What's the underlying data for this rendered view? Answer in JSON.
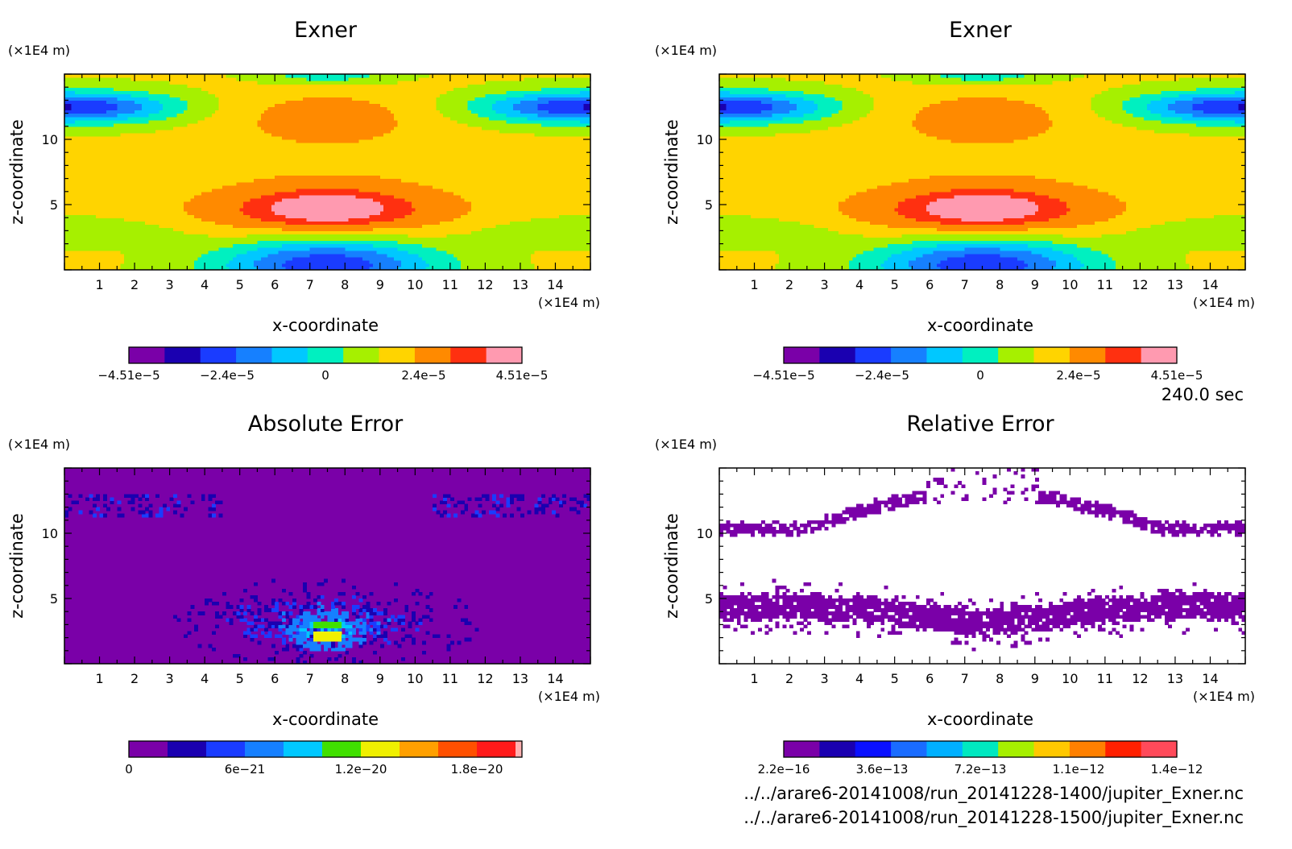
{
  "figure": {
    "time_label": "240.0 sec",
    "file_lines": [
      "../../arare6-20141008/run_20141228-1400/jupiter_Exner.nc",
      "../../arare6-20141008/run_20141228-1500/jupiter_Exner.nc"
    ]
  },
  "chart_data": [
    {
      "type": "heatmap",
      "title": "Exner",
      "xlabel": "x-coordinate",
      "ylabel": "z-coordinate",
      "x_unit": "(×1E4 m)",
      "y_unit": "(×1E4 m)",
      "xlim": [
        0,
        15
      ],
      "ylim": [
        0,
        15
      ],
      "xticks": [
        "1",
        "2",
        "3",
        "4",
        "5",
        "6",
        "7",
        "8",
        "9",
        "10",
        "11",
        "12",
        "13",
        "14"
      ],
      "yticks": [
        "5",
        "10"
      ],
      "colorbar": {
        "levels": 11,
        "min": -4.51e-05,
        "max": 4.51e-05,
        "labels": [
          "−4.51e−5",
          "−2.4e−5",
          "0",
          "2.4e−5",
          "4.51e−5"
        ],
        "colors": [
          "#7a00a8",
          "#1a00b0",
          "#1a3cff",
          "#1680ff",
          "#00c8ff",
          "#00f0c0",
          "#a6f000",
          "#ffd400",
          "#ff8a00",
          "#ff3010",
          "#ff9ab0"
        ]
      },
      "field": "exner"
    },
    {
      "type": "heatmap",
      "title": "Exner",
      "xlabel": "x-coordinate",
      "ylabel": "z-coordinate",
      "x_unit": "(×1E4 m)",
      "y_unit": "(×1E4 m)",
      "xlim": [
        0,
        15
      ],
      "ylim": [
        0,
        15
      ],
      "xticks": [
        "1",
        "2",
        "3",
        "4",
        "5",
        "6",
        "7",
        "8",
        "9",
        "10",
        "11",
        "12",
        "13",
        "14"
      ],
      "yticks": [
        "5",
        "10"
      ],
      "colorbar": {
        "levels": 11,
        "min": -4.51e-05,
        "max": 4.51e-05,
        "labels": [
          "−4.51e−5",
          "−2.4e−5",
          "0",
          "2.4e−5",
          "4.51e−5"
        ],
        "colors": [
          "#7a00a8",
          "#1a00b0",
          "#1a3cff",
          "#1680ff",
          "#00c8ff",
          "#00f0c0",
          "#a6f000",
          "#ffd400",
          "#ff8a00",
          "#ff3010",
          "#ff9ab0"
        ]
      },
      "field": "exner"
    },
    {
      "type": "heatmap",
      "title": "Absolute Error",
      "xlabel": "x-coordinate",
      "ylabel": "z-coordinate",
      "x_unit": "(×1E4 m)",
      "y_unit": "(×1E4 m)",
      "xlim": [
        0,
        15
      ],
      "ylim": [
        0,
        15
      ],
      "xticks": [
        "1",
        "2",
        "3",
        "4",
        "5",
        "6",
        "7",
        "8",
        "9",
        "10",
        "11",
        "12",
        "13",
        "14"
      ],
      "yticks": [
        "5",
        "10"
      ],
      "colorbar": {
        "levels": 11,
        "min": 0,
        "max": 2.1e-20,
        "labels": [
          "0",
          "6e−21",
          "1.2e−20",
          "1.8e−20"
        ],
        "colors": [
          "#7a00a8",
          "#1a00b0",
          "#1a3cff",
          "#1680ff",
          "#00c8ff",
          "#40e000",
          "#f0f000",
          "#ffa000",
          "#ff5000",
          "#ff1a1a",
          "#ffb0b0"
        ]
      },
      "field": "abs_error"
    },
    {
      "type": "heatmap",
      "title": "Relative Error",
      "xlabel": "x-coordinate",
      "ylabel": "z-coordinate",
      "x_unit": "(×1E4 m)",
      "y_unit": "(×1E4 m)",
      "xlim": [
        0,
        15
      ],
      "ylim": [
        0,
        15
      ],
      "xticks": [
        "1",
        "2",
        "3",
        "4",
        "5",
        "6",
        "7",
        "8",
        "9",
        "10",
        "11",
        "12",
        "13",
        "14"
      ],
      "yticks": [
        "5",
        "10"
      ],
      "colorbar": {
        "levels": 11,
        "min": 2.2e-16,
        "max": 1.4e-12,
        "labels": [
          "2.2e−16",
          "3.6e−13",
          "7.2e−13",
          "1.1e−12",
          "1.4e−12"
        ],
        "colors": [
          "#7a00a8",
          "#1a00b0",
          "#0a10ff",
          "#1a6cff",
          "#00b0ff",
          "#00e8c0",
          "#a6f000",
          "#ffc800",
          "#ff8000",
          "#ff2000",
          "#ff4a5a"
        ]
      },
      "field": "rel_error"
    }
  ]
}
